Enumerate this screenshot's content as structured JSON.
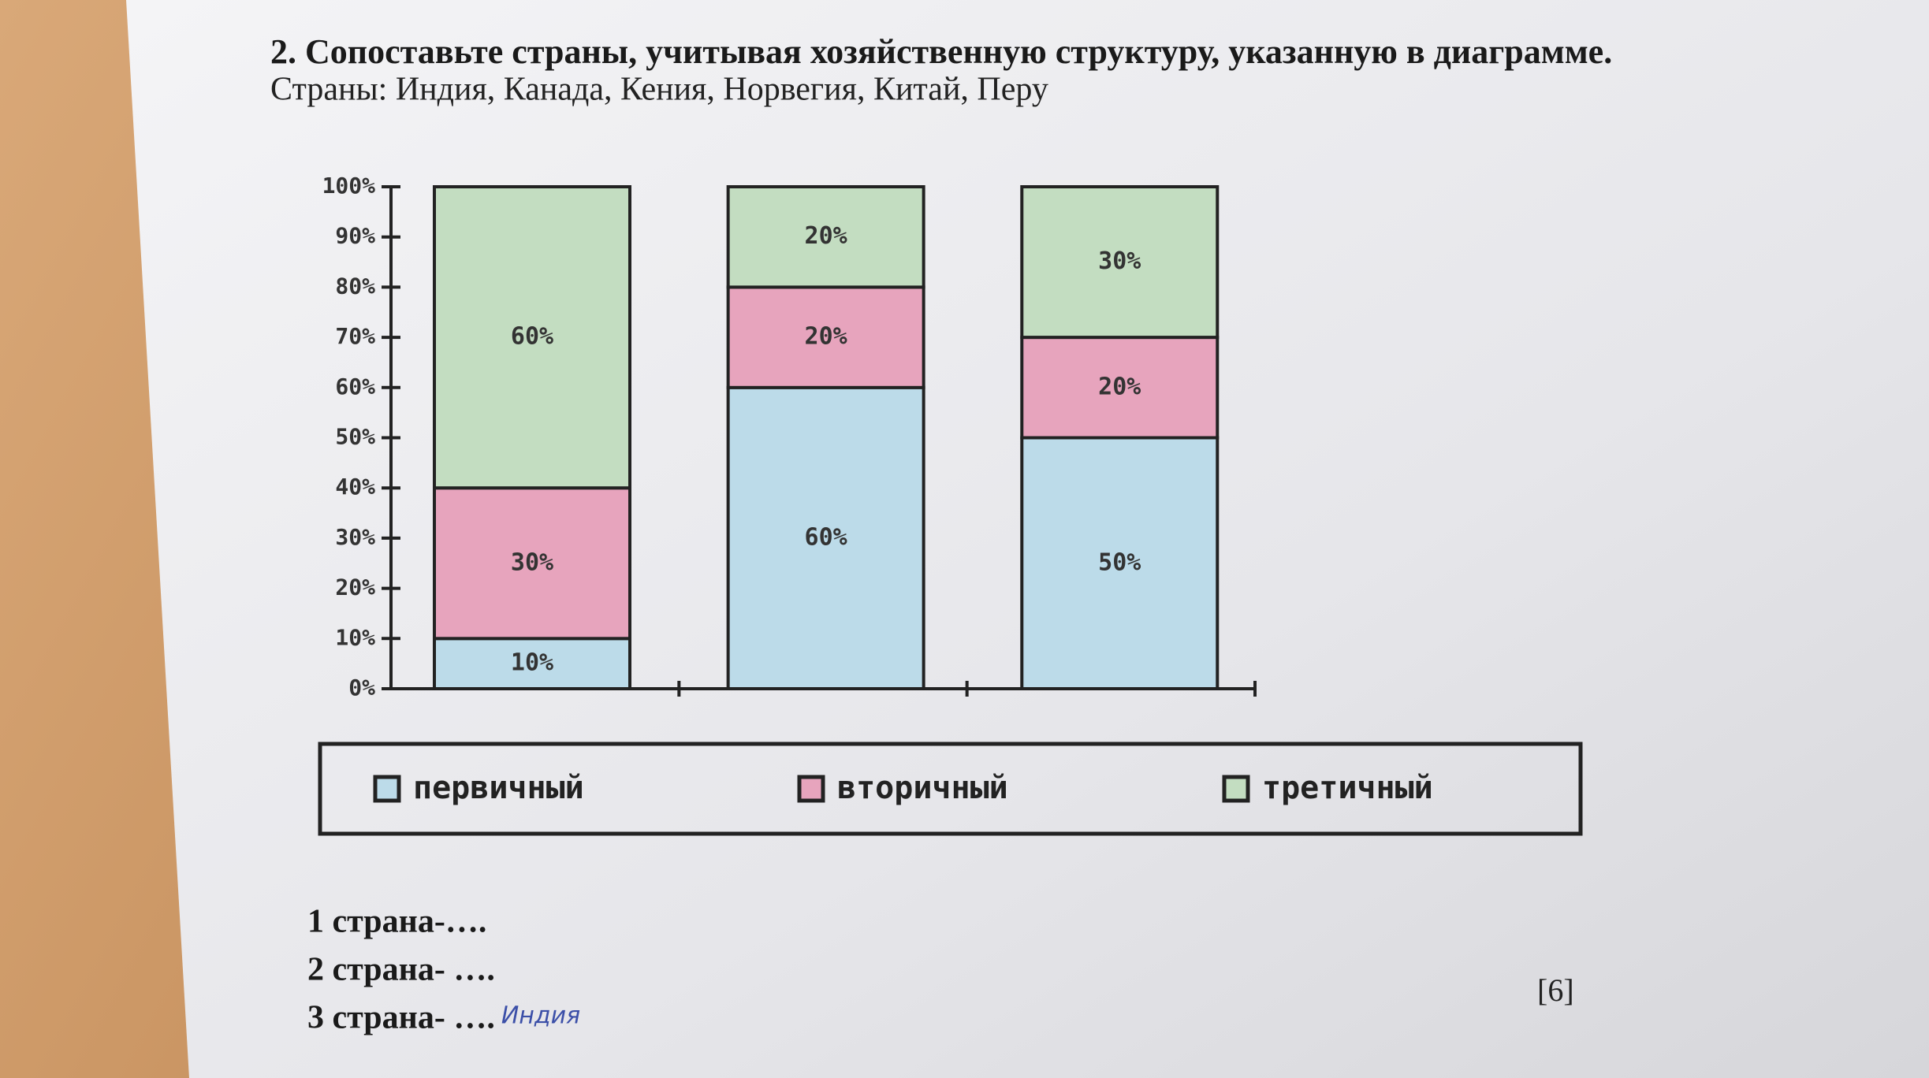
{
  "question": {
    "title": "2. Сопоставьте страны, учитывая хозяйственную структуру, указанную в диаграмме.",
    "subtitle": "Страны: Индия, Канада, Кения, Норвегия, Китай, Перу"
  },
  "chart_data": {
    "type": "stacked_bar",
    "categories": [
      null,
      null,
      null
    ],
    "series": [
      {
        "name": "первичный",
        "color": "#bcdbe9",
        "values": [
          10,
          60,
          50
        ],
        "value_labels": [
          "10%",
          "60%",
          "50%"
        ]
      },
      {
        "name": "вторичный",
        "color": "#e7a4bd",
        "values": [
          30,
          20,
          20
        ],
        "value_labels": [
          "30%",
          "20%",
          "20%"
        ]
      },
      {
        "name": "третичный",
        "color": "#c3ddc1",
        "values": [
          60,
          20,
          30
        ],
        "value_labels": [
          "60%",
          "20%",
          "30%"
        ]
      }
    ],
    "ylim": [
      0,
      100
    ],
    "yticks": [
      {
        "value": 0,
        "label": "0%"
      },
      {
        "value": 10,
        "label": "10%"
      },
      {
        "value": 20,
        "label": "20%"
      },
      {
        "value": 30,
        "label": "30%"
      },
      {
        "value": 40,
        "label": "40%"
      },
      {
        "value": 50,
        "label": "50%"
      },
      {
        "value": 60,
        "label": "60%"
      },
      {
        "value": 70,
        "label": "70%"
      },
      {
        "value": 80,
        "label": "80%"
      },
      {
        "value": 90,
        "label": "90%"
      },
      {
        "value": 100,
        "label": "100%"
      }
    ],
    "legend": "bottom"
  },
  "answers": [
    "1 страна-….",
    "2 страна- ….",
    "3 страна- …."
  ],
  "handwriting": "Индия",
  "score": "[6]"
}
